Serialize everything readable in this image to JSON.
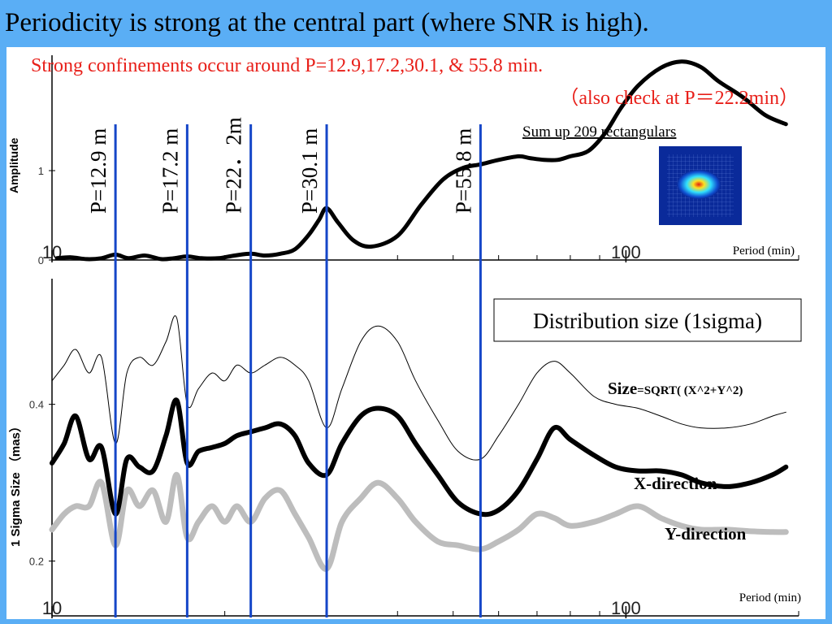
{
  "slide": {
    "title": "Periodicity is strong at the central part (where SNR is high).",
    "red_note_1": "Strong confinements occur  around P=12.9,17.2,30.1, & 55.8 min.",
    "red_note_2": "（also check at P＝22.2min）",
    "sum_note": "Sum up 209 rectangulars",
    "image_name": "gaussian-spot-image",
    "colors": {
      "background": "#5aaef5",
      "note_red": "#e8201a",
      "period_line": "#1546c8",
      "y_series_gray": "#bdbdbd"
    }
  },
  "chart_data": [
    {
      "type": "line",
      "xscale": "log",
      "xlim": [
        10,
        200
      ],
      "ylim": [
        0,
        2.2
      ],
      "ylabel": "Amplitude",
      "xlabel": "Period (min)",
      "x_tick_labels": [
        "10",
        "100"
      ],
      "y_tick_labels": [
        "0",
        "1"
      ],
      "y_ticks": [
        0,
        1
      ],
      "x_ticks": [
        10,
        100
      ],
      "x_minor_ticks": [
        20,
        30,
        40,
        50,
        60,
        70,
        80,
        90,
        200
      ],
      "series": [
        {
          "x": [
            10.2,
            10.8,
            11.5,
            12.2,
            12.9,
            13.6,
            14.5,
            15.5,
            16.3,
            17.2,
            18.2,
            19.5,
            20.8,
            22.2,
            23.5,
            25,
            26.5,
            28,
            29.2,
            30.1,
            31.5,
            33.5,
            36,
            40,
            44,
            48,
            52,
            55.8,
            60,
            65,
            68,
            72,
            76,
            80,
            86,
            92,
            98,
            105,
            115,
            125,
            135,
            145,
            160,
            175,
            190
          ],
          "y": [
            0.02,
            0.03,
            0.01,
            0.02,
            0.06,
            0.02,
            0.05,
            0.01,
            0.02,
            0.04,
            0.02,
            0.02,
            0.05,
            0.07,
            0.05,
            0.07,
            0.12,
            0.28,
            0.45,
            0.58,
            0.42,
            0.22,
            0.15,
            0.27,
            0.62,
            0.9,
            1.03,
            1.07,
            1.12,
            1.16,
            1.14,
            1.12,
            1.12,
            1.16,
            1.22,
            1.42,
            1.7,
            1.95,
            2.15,
            2.22,
            2.16,
            2.0,
            1.82,
            1.62,
            1.52
          ]
        }
      ]
    },
    {
      "type": "line",
      "xscale": "log",
      "xlim": [
        10,
        200
      ],
      "ylim": [
        0.13,
        0.55
      ],
      "ylabel": "1 Sigma Size （mas）",
      "xlabel": "Period (min)",
      "x_tick_labels": [
        "10",
        "100"
      ],
      "y_tick_labels": [
        "0.2",
        "0.4"
      ],
      "y_ticks": [
        0.2,
        0.4
      ],
      "x_ticks": [
        10,
        100
      ],
      "x_minor_ticks": [
        20,
        30,
        40,
        50,
        60,
        70,
        80,
        90,
        200
      ],
      "legend_title": "Distribution size (1sigma)",
      "series": [
        {
          "name": "Size=SQRT(  (X^2+Y^2)",
          "name_main": "Size",
          "name_rest": "=SQRT(  (X^2+Y^2)",
          "x": [
            10,
            10.5,
            11,
            11.6,
            12.2,
            12.9,
            13.5,
            14.2,
            15,
            15.8,
            16.5,
            17.2,
            18,
            19,
            20,
            21,
            22.2,
            23.5,
            25,
            26.5,
            28,
            30.1,
            32,
            34.5,
            37,
            40,
            43,
            47,
            51,
            55.8,
            60,
            65,
            70,
            75,
            80,
            88,
            96,
            105,
            115,
            125,
            135,
            150,
            165,
            180,
            190
          ],
          "y": [
            0.43,
            0.45,
            0.47,
            0.44,
            0.46,
            0.35,
            0.44,
            0.46,
            0.45,
            0.48,
            0.51,
            0.4,
            0.42,
            0.44,
            0.43,
            0.45,
            0.44,
            0.45,
            0.46,
            0.45,
            0.43,
            0.37,
            0.42,
            0.48,
            0.5,
            0.48,
            0.43,
            0.38,
            0.34,
            0.33,
            0.36,
            0.4,
            0.44,
            0.455,
            0.44,
            0.41,
            0.4,
            0.395,
            0.385,
            0.375,
            0.37,
            0.37,
            0.375,
            0.385,
            0.39
          ]
        },
        {
          "name": "X-direction",
          "x": [
            10,
            10.5,
            11,
            11.6,
            12.2,
            12.9,
            13.5,
            14.2,
            15,
            15.8,
            16.5,
            17.2,
            18,
            19,
            20,
            21,
            22.2,
            23.5,
            25,
            26.5,
            28,
            30.1,
            32,
            34.5,
            37,
            40,
            43,
            47,
            51,
            55.8,
            60,
            65,
            70,
            75,
            80,
            88,
            96,
            105,
            115,
            125,
            135,
            150,
            165,
            180,
            190
          ],
          "y": [
            0.325,
            0.35,
            0.385,
            0.33,
            0.345,
            0.26,
            0.33,
            0.32,
            0.315,
            0.36,
            0.405,
            0.325,
            0.34,
            0.345,
            0.35,
            0.36,
            0.365,
            0.37,
            0.375,
            0.36,
            0.325,
            0.31,
            0.35,
            0.385,
            0.395,
            0.385,
            0.35,
            0.31,
            0.275,
            0.26,
            0.265,
            0.29,
            0.33,
            0.37,
            0.355,
            0.335,
            0.32,
            0.315,
            0.315,
            0.31,
            0.3,
            0.295,
            0.3,
            0.31,
            0.32
          ]
        },
        {
          "name": "Y-direction",
          "x": [
            10,
            10.5,
            11,
            11.6,
            12.2,
            12.9,
            13.5,
            14.2,
            15,
            15.8,
            16.5,
            17.2,
            18,
            19,
            20,
            21,
            22.2,
            23.5,
            25,
            26.5,
            28,
            30.1,
            32,
            34.5,
            37,
            40,
            43,
            47,
            51,
            55.8,
            60,
            65,
            70,
            75,
            80,
            88,
            96,
            105,
            115,
            125,
            135,
            150,
            165,
            180,
            190
          ],
          "y": [
            0.24,
            0.26,
            0.27,
            0.27,
            0.3,
            0.22,
            0.29,
            0.27,
            0.29,
            0.25,
            0.31,
            0.23,
            0.25,
            0.27,
            0.25,
            0.27,
            0.25,
            0.28,
            0.29,
            0.26,
            0.23,
            0.19,
            0.25,
            0.28,
            0.3,
            0.28,
            0.25,
            0.225,
            0.22,
            0.215,
            0.225,
            0.24,
            0.26,
            0.255,
            0.245,
            0.25,
            0.26,
            0.27,
            0.255,
            0.245,
            0.24,
            0.24,
            0.238,
            0.237,
            0.237
          ]
        }
      ]
    }
  ],
  "period_lines": [
    {
      "label": "P=12.9 m",
      "period": 12.9
    },
    {
      "label": "P=17.2 m",
      "period": 17.2
    },
    {
      "label": "P=22．2m",
      "period": 22.2
    },
    {
      "label": "P=30.1 m",
      "period": 30.1
    },
    {
      "label": "P=55.8 m",
      "period": 55.8
    }
  ]
}
